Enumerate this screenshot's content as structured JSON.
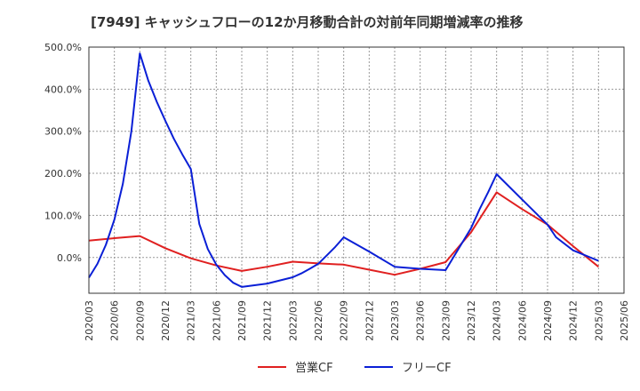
{
  "chart_data": {
    "type": "line",
    "title": "[7949]  キャッシュフローの12か月移動合計の対前年同期増減率の推移",
    "xlabel": "",
    "ylabel": "",
    "ylim": [
      -85,
      500
    ],
    "grid": true,
    "legend_position": "bottom-center",
    "y_ticks": [
      "500.0%",
      "400.0%",
      "300.0%",
      "200.0%",
      "100.0%",
      "0.0%"
    ],
    "y_tick_values": [
      500,
      400,
      300,
      200,
      100,
      0
    ],
    "x_ticks": [
      "2020/03",
      "2020/06",
      "2020/09",
      "2020/12",
      "2021/03",
      "2021/06",
      "2021/09",
      "2021/12",
      "2022/03",
      "2022/06",
      "2022/09",
      "2022/12",
      "2023/03",
      "2023/06",
      "2023/09",
      "2023/12",
      "2024/03",
      "2024/06",
      "2024/09",
      "2024/12",
      "2025/03",
      "2025/06"
    ],
    "series": [
      {
        "name": "営業CF",
        "color": "#e02020",
        "points": [
          [
            "2020/03",
            40
          ],
          [
            "2020/06",
            46
          ],
          [
            "2020/09",
            51
          ],
          [
            "2020/12",
            22
          ],
          [
            "2021/03",
            -2
          ],
          [
            "2021/06",
            -19
          ],
          [
            "2021/09",
            -32
          ],
          [
            "2021/12",
            -22
          ],
          [
            "2022/03",
            -10
          ],
          [
            "2022/06",
            -14
          ],
          [
            "2022/09",
            -17
          ],
          [
            "2022/12",
            -29
          ],
          [
            "2023/03",
            -41
          ],
          [
            "2023/06",
            -27
          ],
          [
            "2023/09",
            -11
          ],
          [
            "2023/12",
            60
          ],
          [
            "2024/03",
            155
          ],
          [
            "2024/06",
            115
          ],
          [
            "2024/09",
            78
          ],
          [
            "2024/12",
            27
          ],
          [
            "2025/03",
            -22
          ]
        ]
      },
      {
        "name": "フリーCF",
        "color": "#0a1fd6",
        "points": [
          [
            "2020/03",
            -48
          ],
          [
            "2020/04",
            -15
          ],
          [
            "2020/05",
            30
          ],
          [
            "2020/06",
            90
          ],
          [
            "2020/07",
            175
          ],
          [
            "2020/08",
            300
          ],
          [
            "2020/09",
            485
          ],
          [
            "2020/10",
            420
          ],
          [
            "2020/11",
            370
          ],
          [
            "2020/12",
            325
          ],
          [
            "2021/01",
            282
          ],
          [
            "2021/02",
            245
          ],
          [
            "2021/03",
            210
          ],
          [
            "2021/04",
            80
          ],
          [
            "2021/05",
            20
          ],
          [
            "2021/06",
            -17
          ],
          [
            "2021/07",
            -42
          ],
          [
            "2021/08",
            -60
          ],
          [
            "2021/09",
            -70
          ],
          [
            "2021/12",
            -62
          ],
          [
            "2022/03",
            -47
          ],
          [
            "2022/04",
            -38
          ],
          [
            "2022/05",
            -27
          ],
          [
            "2022/06",
            -15
          ],
          [
            "2022/07",
            5
          ],
          [
            "2022/08",
            25
          ],
          [
            "2022/09",
            48
          ],
          [
            "2022/12",
            14
          ],
          [
            "2023/03",
            -22
          ],
          [
            "2023/06",
            -27
          ],
          [
            "2023/09",
            -30
          ],
          [
            "2023/12",
            70
          ],
          [
            "2024/01",
            115
          ],
          [
            "2024/02",
            155
          ],
          [
            "2024/03",
            198
          ],
          [
            "2024/06",
            138
          ],
          [
            "2024/09",
            78
          ],
          [
            "2024/10",
            48
          ],
          [
            "2024/12",
            17
          ],
          [
            "2025/03",
            -8
          ]
        ]
      }
    ]
  }
}
